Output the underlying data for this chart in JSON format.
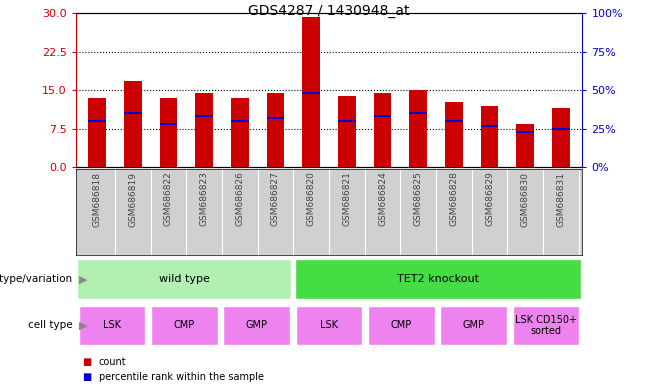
{
  "title": "GDS4287 / 1430948_at",
  "samples": [
    "GSM686818",
    "GSM686819",
    "GSM686822",
    "GSM686823",
    "GSM686826",
    "GSM686827",
    "GSM686820",
    "GSM686821",
    "GSM686824",
    "GSM686825",
    "GSM686828",
    "GSM686829",
    "GSM686830",
    "GSM686831"
  ],
  "counts": [
    13.5,
    16.8,
    13.5,
    14.5,
    13.5,
    14.5,
    29.3,
    13.8,
    14.5,
    15.1,
    12.8,
    12.0,
    8.5,
    11.5
  ],
  "percentile_ranks": [
    30,
    35,
    28,
    33,
    30,
    32,
    48,
    30,
    33,
    35,
    30,
    27,
    23,
    25
  ],
  "ylim_left": [
    0,
    30
  ],
  "ylim_right": [
    0,
    100
  ],
  "yticks_left": [
    0,
    7.5,
    15,
    22.5,
    30
  ],
  "yticks_right": [
    0,
    25,
    50,
    75,
    100
  ],
  "bar_color": "#cc0000",
  "percentile_color": "#0000cc",
  "bar_width": 0.5,
  "genotype_groups": [
    {
      "label": "wild type",
      "start": 0,
      "end": 6,
      "color": "#b2f0b2"
    },
    {
      "label": "TET2 knockout",
      "start": 6,
      "end": 14,
      "color": "#44dd44"
    }
  ],
  "cell_type_groups": [
    {
      "label": "LSK",
      "start": 0,
      "end": 2
    },
    {
      "label": "CMP",
      "start": 2,
      "end": 4
    },
    {
      "label": "GMP",
      "start": 4,
      "end": 6
    },
    {
      "label": "LSK",
      "start": 6,
      "end": 8
    },
    {
      "label": "CMP",
      "start": 8,
      "end": 10
    },
    {
      "label": "GMP",
      "start": 10,
      "end": 12
    },
    {
      "label": "LSK CD150+\nsorted",
      "start": 12,
      "end": 14
    }
  ],
  "cell_type_color": "#ee82ee",
  "sample_bg_color": "#d0d0d0",
  "sample_label_color": "#444444",
  "left_axis_color": "#cc0000",
  "right_axis_color": "#0000cc",
  "background_color": "#ffffff",
  "legend_count_color": "#cc0000",
  "legend_percentile_color": "#0000cc"
}
